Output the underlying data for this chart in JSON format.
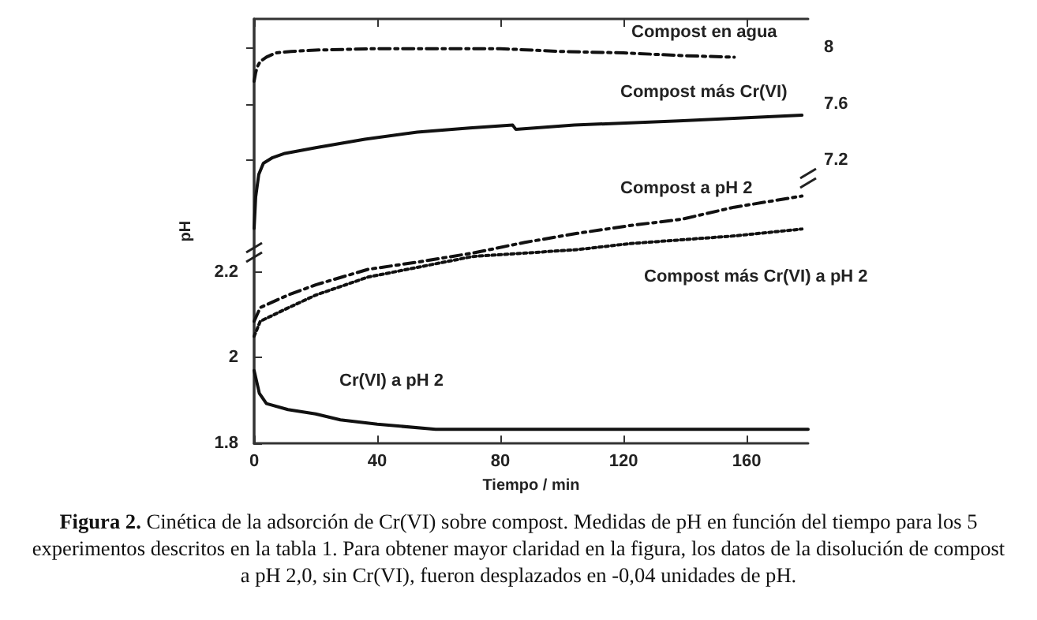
{
  "chart_data": {
    "type": "line",
    "xlabel": "Tiempo / min",
    "ylabel": "pH",
    "annotations": [
      "Figura 2. Cinética de la adsorción de Cr(VI) sobre compost. Medidas de pH en función del tiempo para los 5 experimentos descritos en la tabla 1. Para obtener mayor claridad en la figura, los datos de la disolución de compost a pH 2,0, sin Cr(VI), fueron desplazados en -0,04 unidades de pH."
    ],
    "xlim": [
      0,
      180
    ],
    "xticks": [
      0,
      40,
      80,
      120,
      160
    ],
    "ylim": [
      1.8,
      2.79
    ],
    "yticks": [
      1.8,
      2,
      2.2
    ],
    "y2lim": [
      5.2,
      8.2
    ],
    "y2ticks": [
      7.2,
      7.6,
      8
    ],
    "grid": false,
    "legend": false,
    "series": [
      {
        "name": "Compost en agua",
        "color": "#111111",
        "axis": "y2",
        "line_style": "dashed",
        "x": [
          0,
          0.5,
          1,
          2,
          4,
          7,
          12,
          20,
          40,
          60,
          80,
          100,
          120,
          140,
          156
        ],
        "values": [
          7.76,
          7.82,
          7.86,
          7.9,
          7.93,
          7.96,
          7.97,
          7.98,
          7.99,
          7.99,
          7.99,
          7.97,
          7.96,
          7.94,
          7.93
        ]
      },
      {
        "name": "Compost más Cr(VI)",
        "color": "#111111",
        "axis": "y2",
        "line_style": "solid",
        "x": [
          0,
          0.5,
          1.5,
          3,
          6,
          10,
          20,
          36,
          53,
          70,
          84,
          85,
          104,
          138,
          178
        ],
        "values": [
          6.72,
          6.94,
          7.1,
          7.18,
          7.22,
          7.25,
          7.29,
          7.35,
          7.4,
          7.43,
          7.45,
          7.42,
          7.45,
          7.48,
          7.52
        ]
      },
      {
        "name": "Compost a pH 2",
        "color": "#111111",
        "axis": "y",
        "line_style": "dashed",
        "x": [
          0,
          2,
          11,
          20,
          37,
          54,
          71,
          88,
          105,
          122,
          139,
          156,
          178
        ],
        "values": [
          2.085,
          2.117,
          2.146,
          2.17,
          2.206,
          2.224,
          2.244,
          2.269,
          2.29,
          2.308,
          2.323,
          2.351,
          2.377
        ]
      },
      {
        "name": "Compost más Cr(VI) a pH 2",
        "color": "#111111",
        "axis": "y",
        "line_style": "dotted",
        "x": [
          0,
          2,
          11,
          20,
          37,
          54,
          71,
          88,
          105,
          122,
          139,
          156,
          178
        ],
        "values": [
          2.05,
          2.085,
          2.116,
          2.146,
          2.188,
          2.212,
          2.236,
          2.244,
          2.252,
          2.266,
          2.275,
          2.284,
          2.3
        ]
      },
      {
        "name": "Cr(VI) a pH 2",
        "color": "#111111",
        "axis": "y",
        "line_style": "solid",
        "x": [
          0,
          1.7,
          4,
          11,
          20,
          28,
          40,
          59,
          180
        ],
        "values": [
          1.97,
          1.917,
          1.893,
          1.879,
          1.869,
          1.855,
          1.845,
          1.833,
          1.833
        ]
      }
    ]
  }
}
